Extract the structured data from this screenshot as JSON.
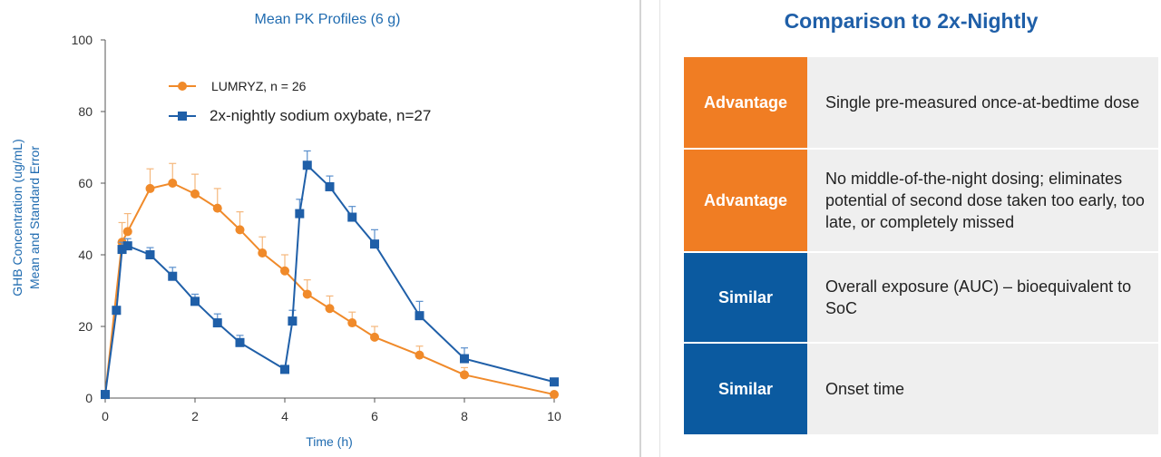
{
  "chart_data": {
    "type": "line",
    "title": "Mean PK Profiles (6 g)",
    "xlabel": "Time (h)",
    "ylabel_lines": [
      "GHB Concentration (ug/mL)",
      "Mean and Standard Error"
    ],
    "xlim": [
      0,
      10
    ],
    "ylim": [
      0,
      100
    ],
    "xticks": [
      "0",
      "2",
      "4",
      "6",
      "8",
      "10"
    ],
    "yticks": [
      "0",
      "20",
      "40",
      "60",
      "80",
      "100"
    ],
    "grid": false,
    "legend_position": "top-left",
    "series": [
      {
        "name": "LUMRYZ, n = 26",
        "color": "#f08a2a",
        "marker": "circle",
        "x": [
          0,
          0.375,
          0.5,
          1,
          1.5,
          2,
          2.5,
          3,
          3.5,
          4,
          4.5,
          5,
          5.5,
          6,
          7,
          8,
          10
        ],
        "y": [
          1,
          43.5,
          46.5,
          58.5,
          60,
          57,
          53,
          47,
          40.5,
          35.5,
          29,
          25,
          21,
          17,
          12,
          6.5,
          1
        ],
        "err": [
          0,
          5.5,
          5,
          5.5,
          5.5,
          5.5,
          5.5,
          5,
          4.5,
          4.5,
          4,
          3.5,
          3,
          3,
          2.5,
          2,
          0
        ]
      },
      {
        "name": "2x-nightly sodium oxybate, n=27",
        "color": "#1f5fa8",
        "marker": "square",
        "x": [
          0,
          0.25,
          0.375,
          0.5,
          1,
          1.5,
          2,
          2.5,
          3,
          4,
          4.17,
          4.33,
          4.5,
          5,
          5.5,
          6,
          7,
          8,
          10
        ],
        "y": [
          1,
          24.5,
          41.5,
          42.5,
          40,
          34,
          27,
          21,
          15.5,
          8,
          21.5,
          51.5,
          65,
          59,
          50.5,
          43,
          23,
          11,
          4.5
        ],
        "err": [
          0,
          0,
          2,
          2,
          2,
          2.5,
          2,
          2.5,
          2,
          0,
          3,
          4,
          4,
          3,
          3,
          4,
          4,
          3,
          0
        ]
      }
    ]
  },
  "comparison": {
    "title": "Comparison to 2x-Nightly",
    "rows": [
      {
        "label": "Advantage",
        "text": "Single pre-measured once-at-bedtime dose",
        "color": "#f07d23"
      },
      {
        "label": "Advantage",
        "text": "No middle-of-the-night dosing; eliminates potential of second dose taken too early, too late, or completely missed",
        "color": "#f07d23"
      },
      {
        "label": "Similar",
        "text": "Overall exposure (AUC) – bioequivalent to SoC",
        "color": "#0b5aa0"
      },
      {
        "label": "Similar",
        "text": "Onset time",
        "color": "#0b5aa0"
      }
    ]
  }
}
